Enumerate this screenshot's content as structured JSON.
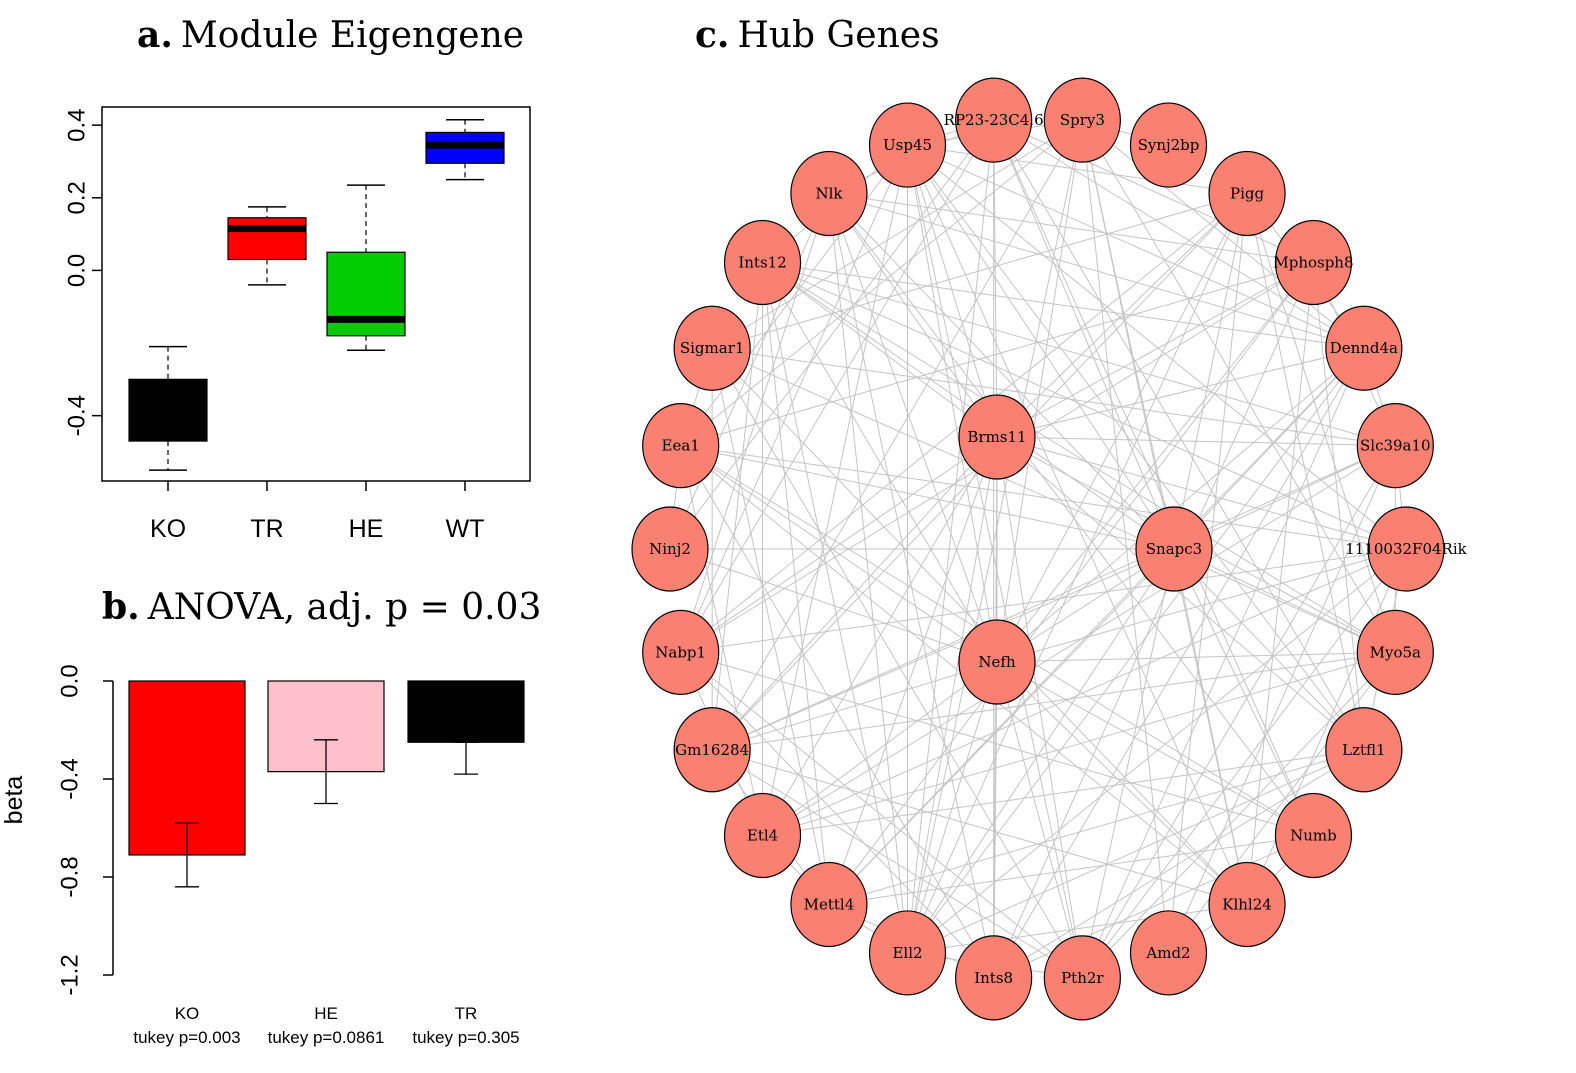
{
  "panel_a": {
    "letter": "a.",
    "title": "Module Eigengene"
  },
  "panel_b": {
    "letter": "b.",
    "title": "ANOVA, adj. p = 0.03"
  },
  "panel_c": {
    "letter": "c.",
    "title": "Hub Genes"
  },
  "chart_data": [
    {
      "type": "box",
      "categories": [
        "KO",
        "TR",
        "HE",
        "WT"
      ],
      "colors": [
        "#000000",
        "#ff0000",
        "#00cc00",
        "#0000ff"
      ],
      "boxes": [
        {
          "name": "KO",
          "min": -0.55,
          "q1": -0.47,
          "median": -0.38,
          "q3": -0.3,
          "max": -0.21
        },
        {
          "name": "TR",
          "min": -0.04,
          "q1": 0.03,
          "median": 0.115,
          "q3": 0.145,
          "max": 0.175
        },
        {
          "name": "HE",
          "min": -0.22,
          "q1": -0.18,
          "median": -0.135,
          "q3": 0.05,
          "max": 0.235
        },
        {
          "name": "WT",
          "min": 0.25,
          "q1": 0.295,
          "median": 0.345,
          "q3": 0.38,
          "max": 0.415
        }
      ],
      "ylim": [
        -0.58,
        0.45
      ],
      "yticks": [
        "-0.4",
        "0.0",
        "0.2",
        "0.4"
      ],
      "ytick_values": [
        -0.4,
        0.0,
        0.2,
        0.4
      ]
    },
    {
      "type": "bar",
      "categories": [
        "KO",
        "HE",
        "TR"
      ],
      "sublabels": [
        "tukey p=0.003",
        "tukey p=0.0861",
        "tukey p=0.305"
      ],
      "values": [
        -0.71,
        -0.37,
        -0.25
      ],
      "error_low": [
        -0.84,
        -0.5,
        -0.38
      ],
      "error_high": [
        -0.58,
        -0.24,
        -0.25
      ],
      "colors": [
        "#ff0000",
        "#ffc0cb",
        "#000000"
      ],
      "ylabel": "beta",
      "ylim": [
        -1.2,
        0.2
      ],
      "yticks": [
        "-1.2",
        "-0.8",
        "-0.4",
        "0.0"
      ],
      "ytick_values": [
        -1.2,
        -0.8,
        -0.4,
        0.0
      ]
    },
    {
      "type": "network",
      "node_color": "#fa8072",
      "edge_color": "#c4c4c4",
      "outer_nodes": [
        "Spry3",
        "Synj2bp",
        "Pigg",
        "Mphosph8",
        "Dennd4a",
        "Slc39a10",
        "1110032F04Rik",
        "Myo5a",
        "Lztfl1",
        "Numb",
        "Klhl24",
        "Amd2",
        "Pth2r",
        "Ints8",
        "Ell2",
        "Mettl4",
        "Etl4",
        "Gm16284",
        "Nabp1",
        "Ninj2",
        "Eea1",
        "Sigmar1",
        "Ints12",
        "Nlk",
        "Usp45",
        "RP23-23C4.6"
      ],
      "inner_nodes": [
        "Brms11",
        "Snapc3",
        "Nefh"
      ]
    }
  ]
}
